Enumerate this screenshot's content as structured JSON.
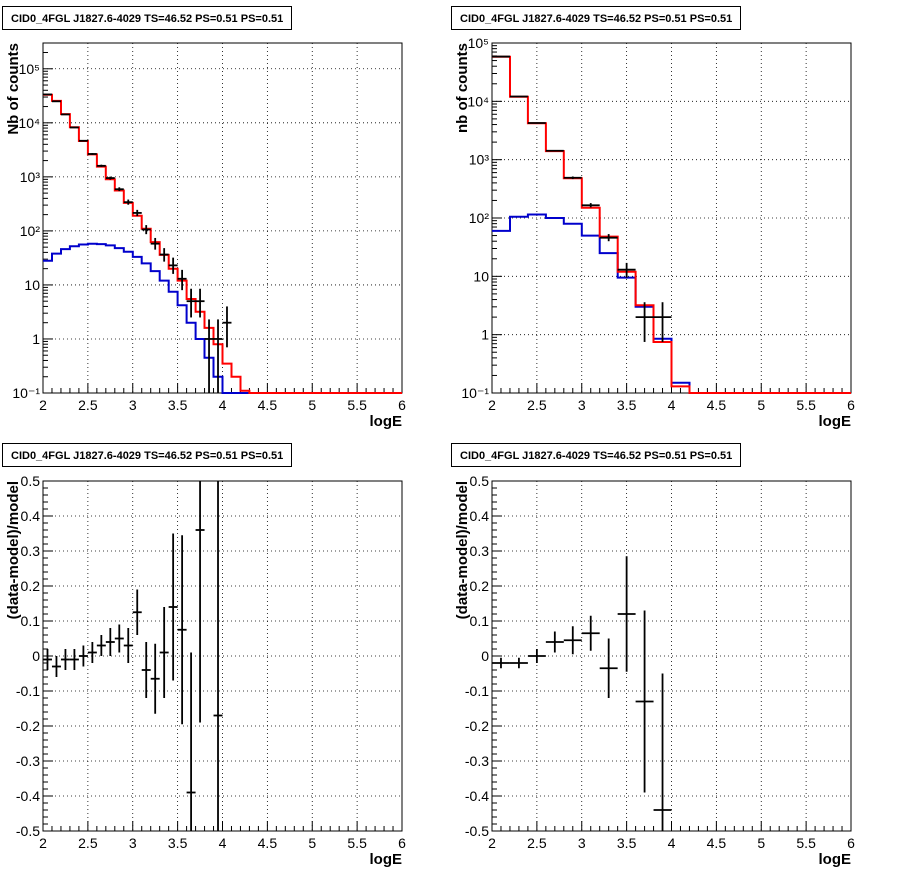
{
  "titles": [
    "CID0_4FGL J1827.6-4029 TS=46.52 PS=0.51 PS=0.51",
    "CID0_4FGL J1827.6-4029 TS=46.52 PS=0.51 PS=0.51",
    "CID0_4FGL J1827.6-4029 TS=46.52 PS=0.51 PS=0.51",
    "CID0_4FGL J1827.6-4029 TS=46.52 PS=0.51 PS=0.51"
  ],
  "colors": {
    "data": "#000000",
    "total_model": "#ff0000",
    "source_model": "#0000cc",
    "grid": "#000000"
  },
  "chart_data": [
    {
      "type": "line",
      "xlabel": "logE",
      "ylabel": "Nb of counts",
      "log_y": true,
      "xlim": [
        2,
        6
      ],
      "ylim": [
        0.1,
        300000
      ],
      "x_ticks": [
        "2",
        "2.5",
        "3",
        "3.5",
        "4",
        "4.5",
        "5",
        "5.5",
        "6"
      ],
      "y_ticks": [
        "10⁻¹",
        "1",
        "10",
        "10²",
        "10³",
        "10⁴",
        "10⁵"
      ],
      "grid": true,
      "bin_width": 0.1,
      "bin_edges_start": 2,
      "total_model": [
        33000,
        25500,
        14500,
        8300,
        4600,
        2600,
        1550,
        900,
        560,
        330,
        190,
        110,
        62,
        36,
        20,
        12,
        5.5,
        3.2,
        1.6,
        0.8,
        0.35,
        0.2,
        0.11,
        0.1,
        0.1,
        0.1,
        0.1,
        0.1,
        0.1,
        0.1,
        0.1,
        0.1,
        0.1,
        0.1,
        0.1,
        0.1,
        0.1,
        0.1,
        0.1,
        0.1
      ],
      "source_model": [
        28,
        38,
        46,
        52,
        56,
        58,
        57,
        54,
        48,
        41,
        33,
        25,
        18,
        12,
        7.5,
        4.2,
        2,
        1,
        0.45,
        0.2,
        0.1,
        0.1,
        0.1,
        0.1,
        0.1,
        0.1,
        0.1,
        0.1,
        0.1,
        0.1,
        0.1,
        0.1,
        0.1,
        0.1,
        0.1,
        0.1,
        0.1,
        0.1,
        0.1,
        0.1
      ],
      "data_points": [
        {
          "x": 2.05,
          "y": 33500,
          "lo": 33000,
          "hi": 34000
        },
        {
          "x": 2.15,
          "y": 25000,
          "lo": 24600,
          "hi": 25400
        },
        {
          "x": 2.25,
          "y": 14300,
          "lo": 14000,
          "hi": 14600
        },
        {
          "x": 2.35,
          "y": 8200,
          "lo": 8000,
          "hi": 8400
        },
        {
          "x": 2.45,
          "y": 4650,
          "lo": 4500,
          "hi": 4800
        },
        {
          "x": 2.55,
          "y": 2650,
          "lo": 2550,
          "hi": 2750
        },
        {
          "x": 2.65,
          "y": 1600,
          "lo": 1530,
          "hi": 1680
        },
        {
          "x": 2.75,
          "y": 950,
          "lo": 890,
          "hi": 1010
        },
        {
          "x": 2.85,
          "y": 590,
          "lo": 545,
          "hi": 640
        },
        {
          "x": 2.95,
          "y": 340,
          "lo": 305,
          "hi": 380
        },
        {
          "x": 3.05,
          "y": 215,
          "lo": 188,
          "hi": 245
        },
        {
          "x": 3.15,
          "y": 106,
          "lo": 87,
          "hi": 128
        },
        {
          "x": 3.25,
          "y": 58,
          "lo": 45,
          "hi": 74
        },
        {
          "x": 3.35,
          "y": 36.5,
          "lo": 27,
          "hi": 48
        },
        {
          "x": 3.45,
          "y": 23,
          "lo": 16,
          "hi": 32
        },
        {
          "x": 3.55,
          "y": 13,
          "lo": 8,
          "hi": 19
        },
        {
          "x": 3.65,
          "y": 5,
          "lo": 2.5,
          "hi": 8.5
        },
        {
          "x": 3.75,
          "y": 5,
          "lo": 2.5,
          "hi": 8.5
        },
        {
          "x": 3.85,
          "y": 1,
          "lo": 0.1,
          "hi": 2.3
        },
        {
          "x": 3.95,
          "y": 1,
          "lo": 0.1,
          "hi": 2.3
        },
        {
          "x": 4.05,
          "y": 2,
          "lo": 0.7,
          "hi": 4
        }
      ]
    },
    {
      "type": "line",
      "xlabel": "logE",
      "ylabel": "nb of counts",
      "log_y": true,
      "xlim": [
        2,
        6
      ],
      "ylim": [
        0.1,
        100000
      ],
      "x_ticks": [
        "2",
        "2.5",
        "3",
        "3.5",
        "4",
        "4.5",
        "5",
        "5.5",
        "6"
      ],
      "y_ticks": [
        "10⁻¹",
        "1",
        "10",
        "10²",
        "10³",
        "10⁴",
        "10⁵"
      ],
      "grid": true,
      "bin_width": 0.2,
      "bin_edges_start": 2,
      "total_model": [
        58000,
        12000,
        4200,
        1400,
        480,
        150,
        48,
        12,
        3.2,
        0.75,
        0.13,
        0.1,
        0.1,
        0.1,
        0.1,
        0.1,
        0.1,
        0.1,
        0.1,
        0.1
      ],
      "source_model": [
        60,
        105,
        115,
        100,
        80,
        50,
        25,
        9.5,
        3,
        0.85,
        0.15,
        0.1,
        0.1,
        0.1,
        0.1,
        0.1,
        0.1,
        0.1,
        0.1,
        0.1
      ],
      "data_points": [
        {
          "x": 2.1,
          "y": 58500,
          "lo": 58000,
          "hi": 59000
        },
        {
          "x": 2.3,
          "y": 12100,
          "lo": 11900,
          "hi": 12300
        },
        {
          "x": 2.5,
          "y": 4250,
          "lo": 4150,
          "hi": 4350
        },
        {
          "x": 2.7,
          "y": 1420,
          "lo": 1380,
          "hi": 1460
        },
        {
          "x": 2.9,
          "y": 490,
          "lo": 465,
          "hi": 515
        },
        {
          "x": 3.1,
          "y": 165,
          "lo": 152,
          "hi": 180
        },
        {
          "x": 3.3,
          "y": 46,
          "lo": 40,
          "hi": 53
        },
        {
          "x": 3.5,
          "y": 13,
          "lo": 9.5,
          "hi": 17
        },
        {
          "x": 3.7,
          "y": 2,
          "lo": 0.75,
          "hi": 3.6
        },
        {
          "x": 3.9,
          "y": 2,
          "lo": 0.75,
          "hi": 3.6
        }
      ]
    },
    {
      "type": "scatter",
      "xlabel": "logE",
      "ylabel": "(data-model)/model",
      "xlim": [
        2,
        6
      ],
      "ylim": [
        -0.5,
        0.5
      ],
      "x_ticks": [
        "2",
        "2.5",
        "3",
        "3.5",
        "4",
        "4.5",
        "5",
        "5.5",
        "6"
      ],
      "y_ticks": [
        "-0.5",
        "-0.4",
        "-0.3",
        "-0.2",
        "-0.1",
        "0",
        "0.1",
        "0.2",
        "0.3",
        "0.4",
        "0.5"
      ],
      "grid": true,
      "bin_width": 0.1,
      "points": [
        {
          "x": 2.05,
          "y": -0.01,
          "err": 0.03
        },
        {
          "x": 2.15,
          "y": -0.03,
          "err": 0.03
        },
        {
          "x": 2.25,
          "y": -0.01,
          "err": 0.03
        },
        {
          "x": 2.35,
          "y": -0.01,
          "err": 0.03
        },
        {
          "x": 2.45,
          "y": 0.0,
          "err": 0.03
        },
        {
          "x": 2.55,
          "y": 0.01,
          "err": 0.03
        },
        {
          "x": 2.65,
          "y": 0.03,
          "err": 0.03
        },
        {
          "x": 2.75,
          "y": 0.04,
          "err": 0.04
        },
        {
          "x": 2.85,
          "y": 0.05,
          "err": 0.04
        },
        {
          "x": 2.95,
          "y": 0.03,
          "err": 0.05
        },
        {
          "x": 3.05,
          "y": 0.125,
          "err": 0.065
        },
        {
          "x": 3.15,
          "y": -0.04,
          "err": 0.08
        },
        {
          "x": 3.25,
          "y": -0.065,
          "err": 0.1
        },
        {
          "x": 3.35,
          "y": 0.01,
          "err": 0.13
        },
        {
          "x": 3.45,
          "y": 0.14,
          "err": 0.21
        },
        {
          "x": 3.55,
          "y": 0.075,
          "err": 0.27
        },
        {
          "x": 3.65,
          "y": -0.39,
          "err": 0.4
        },
        {
          "x": 3.75,
          "y": 0.36,
          "err": 0.55
        },
        {
          "x": 3.95,
          "y": -0.17,
          "err": 0.9
        }
      ]
    },
    {
      "type": "scatter",
      "xlabel": "logE",
      "ylabel": "(data-model)/model",
      "xlim": [
        2,
        6
      ],
      "ylim": [
        -0.5,
        0.5
      ],
      "x_ticks": [
        "2",
        "2.5",
        "3",
        "3.5",
        "4",
        "4.5",
        "5",
        "5.5",
        "6"
      ],
      "y_ticks": [
        "-0.5",
        "-0.4",
        "-0.3",
        "-0.2",
        "-0.1",
        "0",
        "0.1",
        "0.2",
        "0.3",
        "0.4",
        "0.5"
      ],
      "grid": true,
      "bin_width": 0.2,
      "points": [
        {
          "x": 2.1,
          "y": -0.02,
          "err": 0.015
        },
        {
          "x": 2.3,
          "y": -0.02,
          "err": 0.015
        },
        {
          "x": 2.5,
          "y": 0.0,
          "err": 0.02
        },
        {
          "x": 2.7,
          "y": 0.04,
          "err": 0.03
        },
        {
          "x": 2.9,
          "y": 0.045,
          "err": 0.04
        },
        {
          "x": 3.1,
          "y": 0.065,
          "err": 0.05
        },
        {
          "x": 3.3,
          "y": -0.035,
          "err": 0.085
        },
        {
          "x": 3.5,
          "y": 0.12,
          "err": 0.165
        },
        {
          "x": 3.7,
          "y": -0.13,
          "err": 0.26
        },
        {
          "x": 3.9,
          "y": -0.44,
          "err": 0.39
        }
      ]
    }
  ]
}
